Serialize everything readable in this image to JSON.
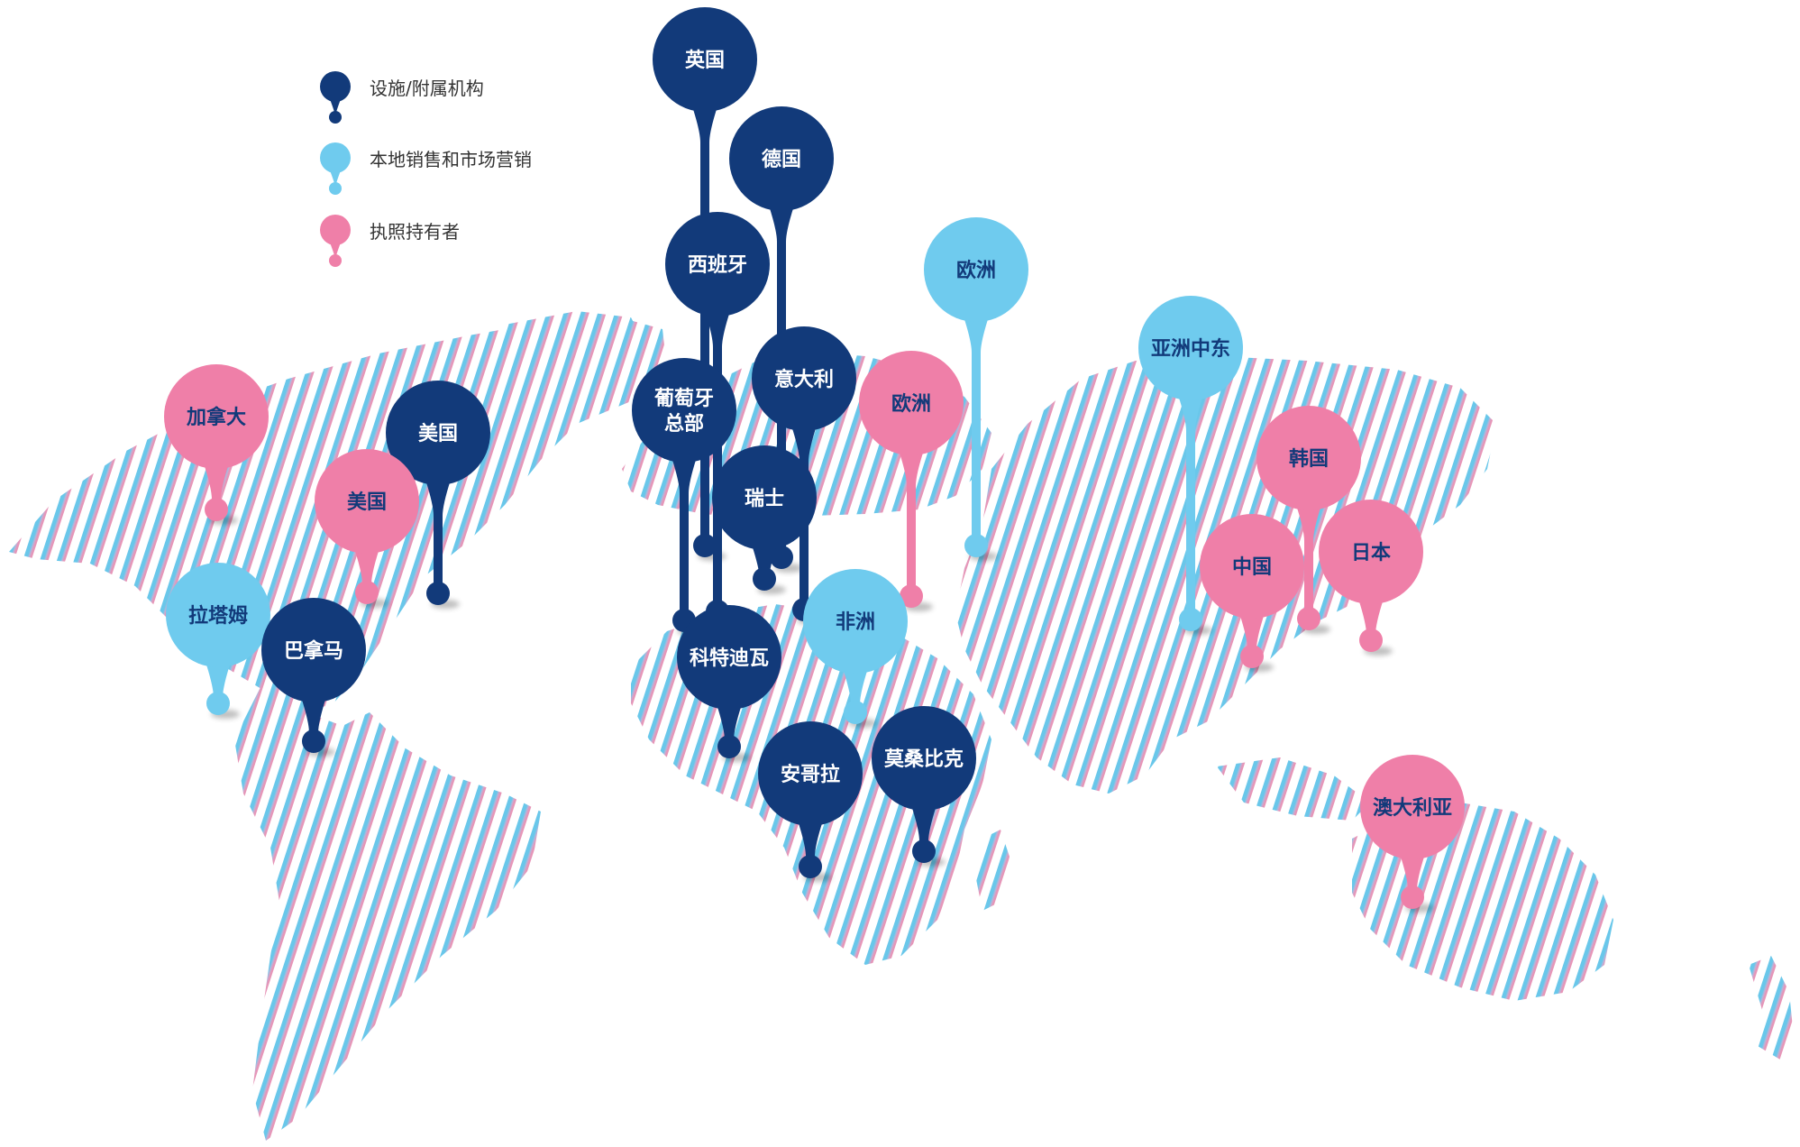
{
  "colors": {
    "facility": "#123a7a",
    "local_sales": "#6fcbee",
    "license_holder": "#ef7fa8",
    "map_west": "#5cc2e8",
    "map_east": "#e189ae"
  },
  "legend": [
    {
      "key": "facility",
      "label": "设施/附属机构"
    },
    {
      "key": "local_sales",
      "label": "本地销售和市场营销"
    },
    {
      "key": "license_holder",
      "label": "执照持有者"
    }
  ],
  "pins": [
    {
      "name": "pin-uk",
      "type": "facility",
      "lines": [
        "英国"
      ]
    },
    {
      "name": "pin-germany",
      "type": "facility",
      "lines": [
        "德国"
      ]
    },
    {
      "name": "pin-spain",
      "type": "facility",
      "lines": [
        "西班牙"
      ]
    },
    {
      "name": "pin-italy",
      "type": "facility",
      "lines": [
        "意大利"
      ]
    },
    {
      "name": "pin-portugal-hq",
      "type": "facility",
      "lines": [
        "葡萄牙",
        "总部"
      ]
    },
    {
      "name": "pin-switzerland",
      "type": "facility",
      "lines": [
        "瑞士"
      ]
    },
    {
      "name": "pin-europe-license",
      "type": "license_holder",
      "lines": [
        "欧洲"
      ]
    },
    {
      "name": "pin-europe-sales",
      "type": "local_sales",
      "lines": [
        "欧洲"
      ]
    },
    {
      "name": "pin-asia-middle-east",
      "type": "local_sales",
      "lines": [
        "亚洲中东"
      ]
    },
    {
      "name": "pin-korea",
      "type": "license_holder",
      "lines": [
        "韩国"
      ]
    },
    {
      "name": "pin-japan",
      "type": "license_holder",
      "lines": [
        "日本"
      ]
    },
    {
      "name": "pin-china",
      "type": "license_holder",
      "lines": [
        "中国"
      ]
    },
    {
      "name": "pin-canada",
      "type": "license_holder",
      "lines": [
        "加拿大"
      ]
    },
    {
      "name": "pin-usa-facility",
      "type": "facility",
      "lines": [
        "美国"
      ]
    },
    {
      "name": "pin-usa-license",
      "type": "license_holder",
      "lines": [
        "美国"
      ]
    },
    {
      "name": "pin-latam",
      "type": "local_sales",
      "lines": [
        "拉塔姆"
      ]
    },
    {
      "name": "pin-panama",
      "type": "facility",
      "lines": [
        "巴拿马"
      ]
    },
    {
      "name": "pin-africa",
      "type": "local_sales",
      "lines": [
        "非洲"
      ]
    },
    {
      "name": "pin-cote-divoire",
      "type": "facility",
      "lines": [
        "科特迪瓦"
      ]
    },
    {
      "name": "pin-angola",
      "type": "facility",
      "lines": [
        "安哥拉"
      ]
    },
    {
      "name": "pin-mozambique",
      "type": "facility",
      "lines": [
        "莫桑比克"
      ]
    },
    {
      "name": "pin-australia",
      "type": "license_holder",
      "lines": [
        "澳大利亚"
      ]
    }
  ]
}
